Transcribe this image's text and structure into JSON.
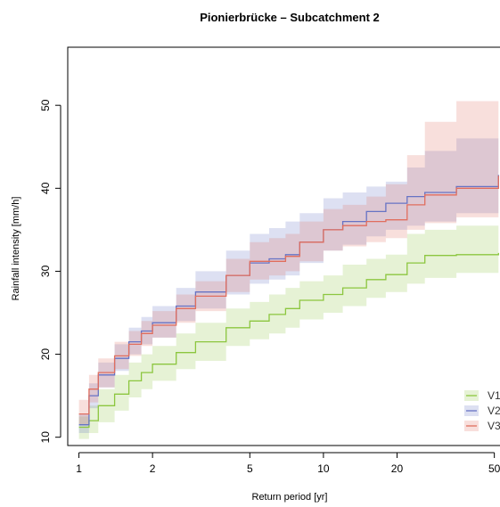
{
  "chart_data": {
    "type": "line",
    "title": "Pionierbrücke – Subcatchment 2",
    "xlabel": "Return period [yr]",
    "ylabel": "Rainfall intensity [mm/h]",
    "x_scale": "log",
    "xlim": [
      0.9,
      55
    ],
    "ylim": [
      9,
      57
    ],
    "x_ticks": [
      1,
      2,
      5,
      10,
      20,
      50
    ],
    "x_tick_labels": [
      "1",
      "2",
      "5",
      "10",
      "20",
      "50"
    ],
    "y_ticks": [
      10,
      20,
      30,
      40,
      50
    ],
    "y_tick_labels": [
      "10",
      "20",
      "30",
      "40",
      "50"
    ],
    "grid": false,
    "legend_position": "bottom-right",
    "series": [
      {
        "name": "V1",
        "color": "#8cc63f",
        "x": [
          1.0,
          1.1,
          1.2,
          1.4,
          1.6,
          1.8,
          2.0,
          2.5,
          3.0,
          4.0,
          5.0,
          6.0,
          7.0,
          8.0,
          10.0,
          12.0,
          15.0,
          18.0,
          22.0,
          26.0,
          35.0,
          52.0
        ],
        "values": [
          11.2,
          12.0,
          13.8,
          15.2,
          16.8,
          17.8,
          18.8,
          20.2,
          21.5,
          23.2,
          24.0,
          24.8,
          25.5,
          26.5,
          27.2,
          28.0,
          29.0,
          29.6,
          31.0,
          31.9,
          32.0,
          32.2
        ],
        "lower": [
          9.8,
          10.5,
          11.8,
          13.2,
          14.8,
          15.8,
          16.8,
          18.2,
          19.2,
          21.0,
          21.8,
          22.5,
          23.2,
          24.2,
          25.0,
          25.8,
          26.8,
          27.5,
          28.5,
          29.2,
          29.8,
          30.5
        ],
        "upper": [
          12.5,
          13.8,
          15.8,
          17.5,
          19.0,
          20.0,
          21.0,
          22.5,
          23.8,
          25.5,
          26.3,
          27.2,
          28.0,
          28.8,
          29.5,
          30.8,
          31.5,
          32.0,
          34.5,
          35.0,
          35.5,
          36.5
        ]
      },
      {
        "name": "V2",
        "color": "#6673c4",
        "x": [
          1.0,
          1.1,
          1.2,
          1.4,
          1.6,
          1.8,
          2.0,
          2.5,
          3.0,
          4.0,
          5.0,
          6.0,
          7.0,
          8.0,
          10.0,
          12.0,
          15.0,
          18.0,
          22.0,
          26.0,
          35.0,
          52.0
        ],
        "values": [
          11.5,
          15.0,
          17.5,
          19.5,
          21.5,
          22.8,
          23.8,
          25.8,
          27.5,
          29.5,
          31.0,
          31.5,
          32.0,
          33.5,
          35.0,
          36.0,
          37.2,
          38.2,
          39.0,
          39.5,
          40.2,
          41.6
        ],
        "lower": [
          10.5,
          13.5,
          16.0,
          18.0,
          20.0,
          21.2,
          22.0,
          24.0,
          25.5,
          27.2,
          28.5,
          29.0,
          29.5,
          31.0,
          32.5,
          33.2,
          34.2,
          35.0,
          35.5,
          36.0,
          37.0,
          38.0
        ],
        "upper": [
          12.8,
          16.5,
          19.0,
          21.2,
          23.2,
          24.5,
          25.8,
          28.0,
          30.0,
          32.5,
          34.5,
          35.2,
          36.0,
          37.0,
          38.8,
          39.5,
          40.2,
          40.8,
          42.5,
          44.5,
          46.0,
          47.5
        ]
      },
      {
        "name": "V3",
        "color": "#e06e5e",
        "x": [
          1.0,
          1.1,
          1.2,
          1.4,
          1.6,
          1.8,
          2.0,
          2.5,
          3.0,
          4.0,
          5.0,
          6.0,
          7.0,
          8.0,
          10.0,
          12.0,
          15.0,
          18.0,
          22.0,
          26.0,
          35.0,
          52.0
        ],
        "values": [
          12.8,
          15.8,
          17.8,
          19.8,
          21.2,
          22.5,
          23.5,
          25.5,
          27.0,
          29.5,
          31.2,
          31.2,
          31.8,
          33.5,
          35.0,
          35.5,
          36.0,
          36.2,
          38.0,
          39.2,
          40.0,
          41.5
        ],
        "lower": [
          11.5,
          14.2,
          16.0,
          18.2,
          19.8,
          21.0,
          22.0,
          23.8,
          25.2,
          27.5,
          29.0,
          29.5,
          30.0,
          31.2,
          32.5,
          33.0,
          33.5,
          34.0,
          35.0,
          35.8,
          36.5,
          37.5
        ],
        "upper": [
          14.5,
          17.5,
          19.5,
          21.5,
          22.8,
          24.0,
          25.2,
          27.2,
          28.8,
          31.5,
          33.5,
          34.0,
          34.5,
          36.0,
          37.5,
          38.0,
          39.0,
          40.5,
          44.0,
          48.0,
          50.5,
          52.8
        ]
      }
    ]
  }
}
